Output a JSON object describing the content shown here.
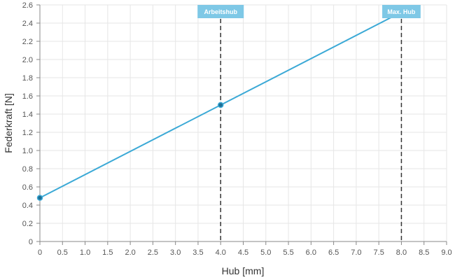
{
  "chart_data": {
    "type": "line",
    "xlabel": "Hub [mm]",
    "ylabel": "Federkraft [N]",
    "xlim": [
      0,
      9.0
    ],
    "ylim": [
      0,
      2.6
    ],
    "x_ticks": [
      "0",
      "0.5",
      "1.0",
      "1.5",
      "2.0",
      "2.5",
      "3.0",
      "3.5",
      "4.0",
      "4.5",
      "5.0",
      "5.5",
      "6.0",
      "6.5",
      "7.0",
      "7.5",
      "8.0",
      "8.5",
      "9.0"
    ],
    "y_ticks": [
      "0",
      "0.2",
      "0.4",
      "0.6",
      "0.8",
      "1.0",
      "1.2",
      "1.4",
      "1.6",
      "1.8",
      "2.0",
      "2.2",
      "2.4",
      "2.6"
    ],
    "grid": true,
    "series": [
      {
        "color": "#3ba9d6",
        "x": [
          0,
          4.0,
          8.0
        ],
        "y": [
          0.48,
          1.5,
          2.52
        ]
      }
    ],
    "markers": [
      {
        "label": "Arbeitshub",
        "x": 4.0
      },
      {
        "label": "Max. Hub",
        "x": 8.0
      }
    ],
    "colors": {
      "line": "#3ba9d6",
      "marker_fill": "#1e6f95",
      "label_bg": "#7ec8e6",
      "grid": "#e6e6e6",
      "axis": "#888888",
      "dash": "#333333"
    }
  }
}
